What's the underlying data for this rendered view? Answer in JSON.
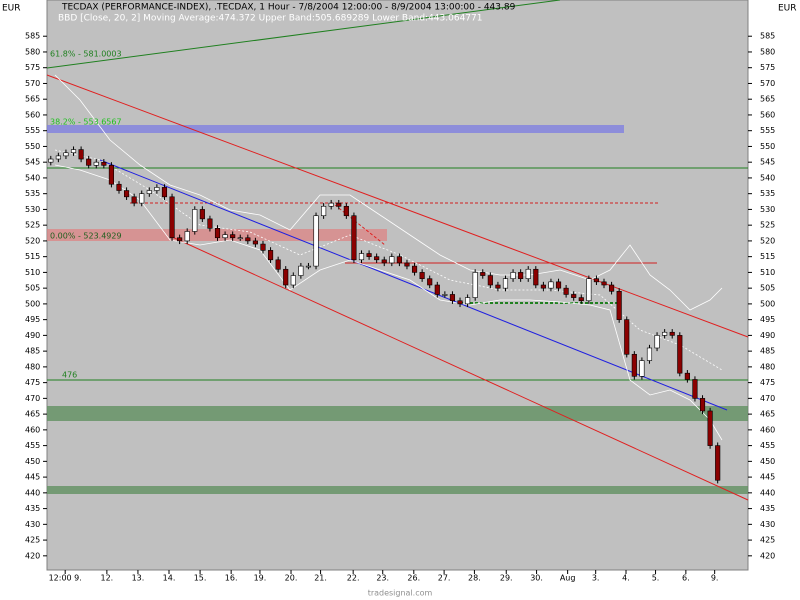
{
  "chart_data": {
    "type": "candlestick",
    "title": "TECDAX (PERFORMANCE-INDEX), .TECDAX, 1 Hour - 7/8/2004 12:00:00 - 8/9/2004 13:00:00 - 443.89",
    "subtitle": "BBD [Close, 20, 2] Moving Average:474.372 Upper Band:505.689289 Lower Band:443.064771",
    "y_axis_label": "EUR",
    "annotations": [
      "61.8% - 581.0003",
      "38.2% - 553.6567",
      "0.00% - 523.4929",
      "476"
    ],
    "footer": "tradesignal.com",
    "up_color": "#ffffff",
    "down_color": "#8b0000",
    "xlim": [
      -0.5,
      92
    ],
    "xticks": [
      {
        "value": 1.9,
        "label": "12:00 9."
      },
      {
        "value": 7.4,
        "label": "12."
      },
      {
        "value": 11.5,
        "label": "13."
      },
      {
        "value": 15.6,
        "label": "14."
      },
      {
        "value": 19.7,
        "label": "15."
      },
      {
        "value": 23.8,
        "label": "16."
      },
      {
        "value": 27.6,
        "label": "19."
      },
      {
        "value": 31.7,
        "label": "20."
      },
      {
        "value": 35.6,
        "label": "21."
      },
      {
        "value": 39.9,
        "label": "22."
      },
      {
        "value": 43.8,
        "label": "23."
      },
      {
        "value": 47.9,
        "label": "26."
      },
      {
        "value": 51.9,
        "label": "27."
      },
      {
        "value": 55.9,
        "label": "28."
      },
      {
        "value": 60.1,
        "label": "29."
      },
      {
        "value": 64.1,
        "label": "30."
      },
      {
        "value": 68.2,
        "label": "Aug"
      },
      {
        "value": 71.9,
        "label": "3."
      },
      {
        "value": 75.9,
        "label": "4."
      },
      {
        "value": 79.8,
        "label": "5."
      },
      {
        "value": 83.8,
        "label": "6."
      },
      {
        "value": 87.6,
        "label": "9."
      }
    ],
    "ylim": [
      415.5,
      596.5
    ],
    "yticks": [
      420,
      425,
      430,
      435,
      440,
      445,
      450,
      455,
      460,
      465,
      470,
      475,
      480,
      485,
      490,
      495,
      500,
      505,
      510,
      515,
      520,
      525,
      530,
      535,
      540,
      545,
      550,
      555,
      560,
      565,
      570,
      575,
      580,
      585
    ],
    "open": [
      545,
      546,
      547,
      548,
      549,
      546,
      544,
      545,
      544,
      538,
      536,
      534,
      532,
      535,
      536,
      537,
      534,
      521,
      520,
      523,
      530,
      527,
      524,
      521,
      522,
      521,
      521,
      520,
      519,
      517,
      514,
      511,
      506,
      509,
      512,
      512,
      528,
      531,
      532,
      531,
      528,
      514,
      516,
      515,
      514,
      513,
      515,
      513,
      512,
      510,
      508,
      506,
      503,
      503,
      501,
      500,
      502,
      510,
      509,
      506,
      505,
      508,
      510,
      508,
      511,
      506,
      505,
      507,
      505,
      503,
      502,
      501,
      508,
      507,
      506,
      504,
      495,
      484,
      477,
      482,
      486,
      490,
      491,
      490,
      478,
      476,
      470,
      466,
      455
    ],
    "high": [
      547,
      548,
      549,
      550,
      550,
      547,
      546,
      546,
      545,
      539,
      537,
      535,
      536,
      537,
      538,
      538,
      535,
      522,
      524,
      531,
      531,
      528,
      525,
      523,
      523,
      522,
      522,
      521,
      520,
      518,
      515,
      512,
      510,
      513,
      513,
      529,
      532,
      533,
      533,
      532,
      529,
      517,
      517,
      516,
      515,
      516,
      516,
      514,
      513,
      511,
      509,
      507,
      504,
      504,
      502,
      503,
      511,
      511,
      510,
      507,
      509,
      511,
      511,
      512,
      512,
      507,
      508,
      508,
      506,
      504,
      503,
      509,
      509,
      508,
      507,
      505,
      496,
      485,
      483,
      487,
      491,
      492,
      492,
      491,
      479,
      477,
      471,
      467,
      456
    ],
    "low": [
      544,
      545,
      546,
      547,
      545,
      543,
      543,
      543,
      537,
      535,
      533,
      531,
      531,
      534,
      535,
      533,
      520,
      519,
      519,
      522,
      526,
      523,
      520,
      520,
      520,
      520,
      519,
      518,
      516,
      513,
      510,
      505,
      505,
      508,
      511,
      511,
      527,
      530,
      530,
      527,
      513,
      513,
      514,
      513,
      512,
      512,
      512,
      511,
      509,
      507,
      505,
      502,
      502,
      500,
      499,
      499,
      501,
      508,
      505,
      504,
      504,
      507,
      507,
      507,
      505,
      504,
      504,
      504,
      502,
      501,
      500,
      500,
      506,
      505,
      503,
      494,
      483,
      476,
      476,
      481,
      485,
      489,
      489,
      477,
      475,
      469,
      465,
      454,
      443
    ],
    "close": [
      546,
      547,
      548,
      549,
      546,
      544,
      545,
      544,
      538,
      536,
      534,
      532,
      535,
      536,
      537,
      534,
      521,
      520,
      523,
      530,
      527,
      524,
      521,
      522,
      521,
      521,
      520,
      519,
      517,
      514,
      511,
      506,
      509,
      512,
      512,
      528,
      531,
      532,
      531,
      528,
      514,
      516,
      515,
      514,
      513,
      515,
      513,
      512,
      510,
      508,
      506,
      503,
      503,
      501,
      500,
      502,
      510,
      509,
      506,
      505,
      508,
      510,
      508,
      511,
      506,
      505,
      507,
      505,
      503,
      502,
      501,
      508,
      507,
      506,
      504,
      495,
      484,
      477,
      482,
      486,
      490,
      491,
      490,
      478,
      476,
      470,
      466,
      455,
      444
    ]
  }
}
